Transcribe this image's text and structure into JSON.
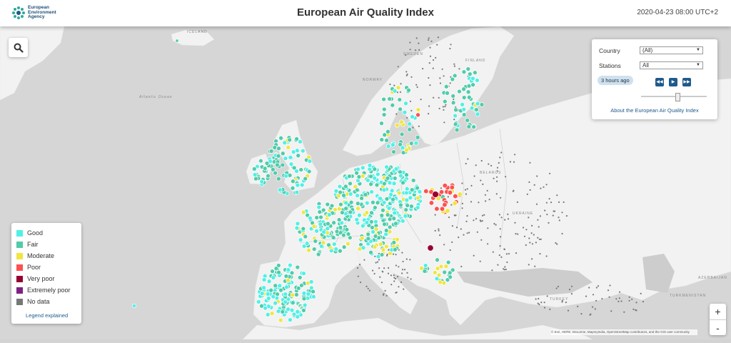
{
  "header": {
    "logo_lines": [
      "European",
      "Environment",
      "Agency"
    ],
    "title": "European Air Quality Index",
    "timestamp": "2020-04-23 08:00 UTC+2"
  },
  "map_labels": {
    "iceland": "ICELAND",
    "sweden": "SWEDEN",
    "finland": "FINLAND",
    "norway": "NORWAY",
    "atlantic": "Atlantic Ocean",
    "belarus": "BELARUS",
    "ukraine": "UKRAINE",
    "turkey": "TURKEY",
    "azerbaijan": "AZERBAIJAN",
    "turkmenistan": "TURKMENISTAN"
  },
  "panel": {
    "country_label": "Country",
    "country_value": "(All)",
    "stations_label": "Stations",
    "stations_value": "All",
    "time_ago": "3 hours ago",
    "slider_value": 0.55,
    "about_link": "About the European Air Quality Index"
  },
  "legend": {
    "items": [
      {
        "label": "Good",
        "color": "#50f0e6"
      },
      {
        "label": "Fair",
        "color": "#50ccaa"
      },
      {
        "label": "Moderate",
        "color": "#f0e641"
      },
      {
        "label": "Poor",
        "color": "#ff5050"
      },
      {
        "label": "Very poor",
        "color": "#960032"
      },
      {
        "label": "Extremely poor",
        "color": "#7d2181"
      },
      {
        "label": "No data",
        "color": "#777777"
      }
    ],
    "link": "Legend explained"
  },
  "zoom": {
    "in": "+",
    "out": "-"
  },
  "attribution": "© Esri, HERE, DeLorme, MapmyIndia, OpenStreetMap contributors, and the GIS user community"
}
